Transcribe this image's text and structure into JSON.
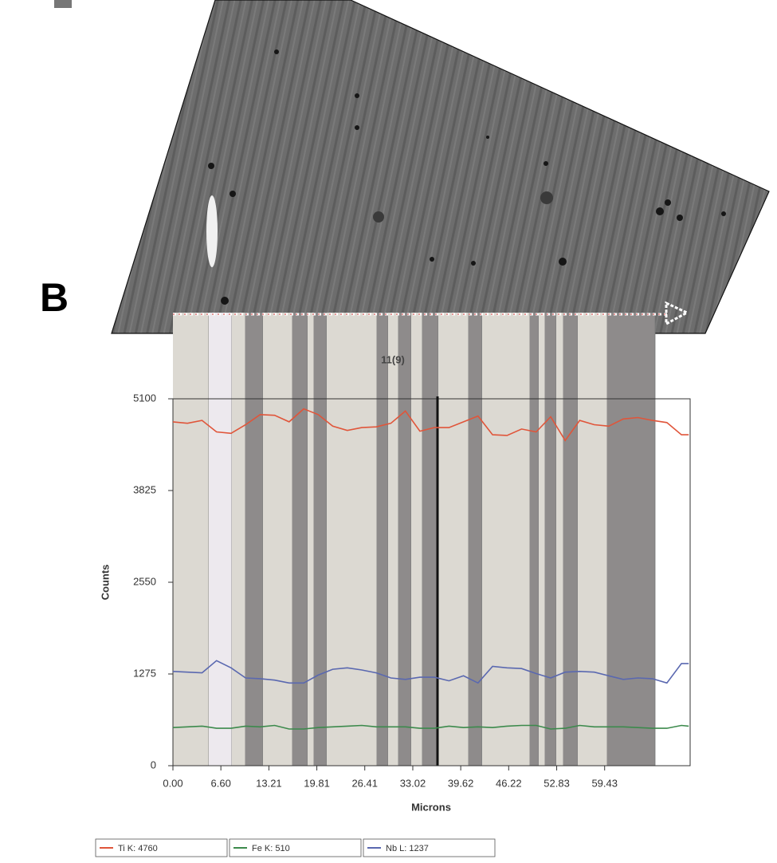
{
  "chart_data": {
    "type": "line",
    "panel_label": "B",
    "cursor_label": "11(9)",
    "x_label": "Microns",
    "y_label": "Counts",
    "x": [
      0,
      2,
      4,
      6,
      8,
      10,
      12,
      14,
      16,
      18,
      20,
      22,
      24,
      26,
      28,
      30,
      32,
      34,
      36,
      38,
      40,
      42,
      44,
      46,
      48,
      50,
      52,
      54,
      56,
      58,
      60,
      62,
      64,
      66,
      68,
      70,
      71
    ],
    "series": [
      {
        "name": "Ti K: 4760",
        "color": "#e0553a",
        "values": [
          4780,
          4760,
          4800,
          4640,
          4620,
          4740,
          4880,
          4870,
          4780,
          4960,
          4880,
          4720,
          4660,
          4700,
          4710,
          4760,
          4930,
          4650,
          4700,
          4700,
          4780,
          4860,
          4600,
          4590,
          4680,
          4640,
          4850,
          4520,
          4800,
          4740,
          4720,
          4820,
          4840,
          4800,
          4770,
          4600,
          4600
        ]
      },
      {
        "name": "Fe K: 510",
        "color": "#3c8a4c",
        "values": [
          530,
          540,
          550,
          520,
          520,
          550,
          540,
          560,
          510,
          510,
          530,
          540,
          550,
          560,
          540,
          540,
          540,
          520,
          520,
          550,
          530,
          540,
          530,
          550,
          560,
          560,
          510,
          520,
          560,
          540,
          540,
          540,
          530,
          520,
          520,
          560,
          550
        ]
      },
      {
        "name": "Nb L: 1237",
        "color": "#5a68b0",
        "values": [
          1310,
          1300,
          1290,
          1460,
          1360,
          1220,
          1210,
          1190,
          1150,
          1150,
          1260,
          1340,
          1360,
          1330,
          1290,
          1220,
          1200,
          1230,
          1230,
          1180,
          1250,
          1150,
          1380,
          1360,
          1350,
          1280,
          1220,
          1300,
          1310,
          1300,
          1250,
          1200,
          1220,
          1210,
          1150,
          1420,
          1420
        ]
      }
    ],
    "xlim": [
      0,
      71.2
    ],
    "ylim": [
      0,
      5100
    ],
    "xticks": [
      {
        "value": 0,
        "label": "0.00"
      },
      {
        "value": 6.6,
        "label": "6.60"
      },
      13.21,
      19.81,
      26.41,
      33.02,
      39.62,
      46.22,
      52.83,
      59.43
    ],
    "yticks": [
      0,
      1275,
      2550,
      3825,
      5100
    ]
  }
}
